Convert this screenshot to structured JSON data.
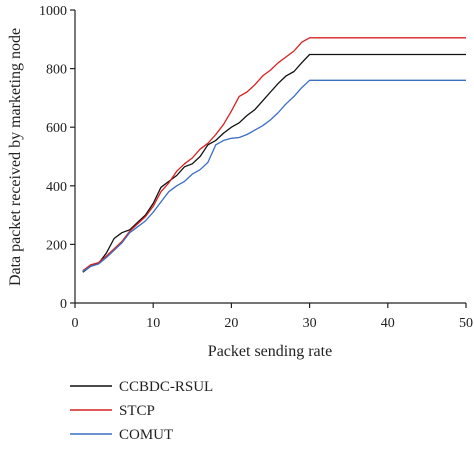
{
  "chart_data": {
    "type": "line",
    "xlabel": "Packet sending rate",
    "ylabel": "Data packet received by marketing node",
    "xlim": [
      0,
      50
    ],
    "ylim": [
      0,
      1000
    ],
    "xticks": [
      0,
      10,
      20,
      30,
      40,
      50
    ],
    "yticks": [
      0,
      200,
      400,
      600,
      800,
      1000
    ],
    "grid": false,
    "legend_position": "bottom",
    "series": [
      {
        "name": "CCBDC-RSUL",
        "color": "#111111",
        "x": [
          1,
          2,
          3,
          4,
          5,
          6,
          7,
          8,
          9,
          10,
          11,
          12,
          13,
          14,
          15,
          16,
          17,
          18,
          19,
          20,
          21,
          22,
          23,
          24,
          25,
          26,
          27,
          28,
          29,
          30,
          31,
          35,
          40,
          45,
          50
        ],
        "y": [
          105,
          125,
          135,
          170,
          220,
          240,
          250,
          275,
          300,
          340,
          395,
          415,
          435,
          465,
          475,
          500,
          540,
          555,
          580,
          600,
          615,
          640,
          660,
          690,
          720,
          750,
          775,
          790,
          820,
          848,
          848,
          848,
          848,
          848,
          848
        ]
      },
      {
        "name": "STCP",
        "color": "#d62020",
        "x": [
          1,
          2,
          3,
          4,
          5,
          6,
          7,
          8,
          9,
          10,
          11,
          12,
          13,
          14,
          15,
          16,
          17,
          18,
          19,
          20,
          21,
          22,
          23,
          24,
          25,
          26,
          27,
          28,
          29,
          30,
          35,
          40,
          45,
          50
        ],
        "y": [
          110,
          130,
          138,
          160,
          185,
          210,
          245,
          270,
          295,
          330,
          380,
          410,
          450,
          475,
          495,
          525,
          545,
          575,
          610,
          655,
          705,
          720,
          745,
          775,
          795,
          820,
          840,
          860,
          890,
          905,
          905,
          905,
          905,
          905
        ]
      },
      {
        "name": "COMUT",
        "color": "#3a6fc4",
        "x": [
          1,
          2,
          3,
          4,
          5,
          6,
          7,
          8,
          9,
          10,
          11,
          12,
          13,
          14,
          15,
          16,
          17,
          18,
          19,
          20,
          21,
          22,
          23,
          24,
          25,
          26,
          27,
          28,
          29,
          30,
          35,
          40,
          45,
          50
        ],
        "y": [
          108,
          125,
          133,
          155,
          180,
          205,
          240,
          260,
          280,
          310,
          345,
          380,
          400,
          415,
          440,
          455,
          480,
          540,
          555,
          562,
          565,
          575,
          590,
          605,
          625,
          650,
          680,
          705,
          735,
          760,
          760,
          760,
          760,
          760
        ]
      }
    ]
  }
}
